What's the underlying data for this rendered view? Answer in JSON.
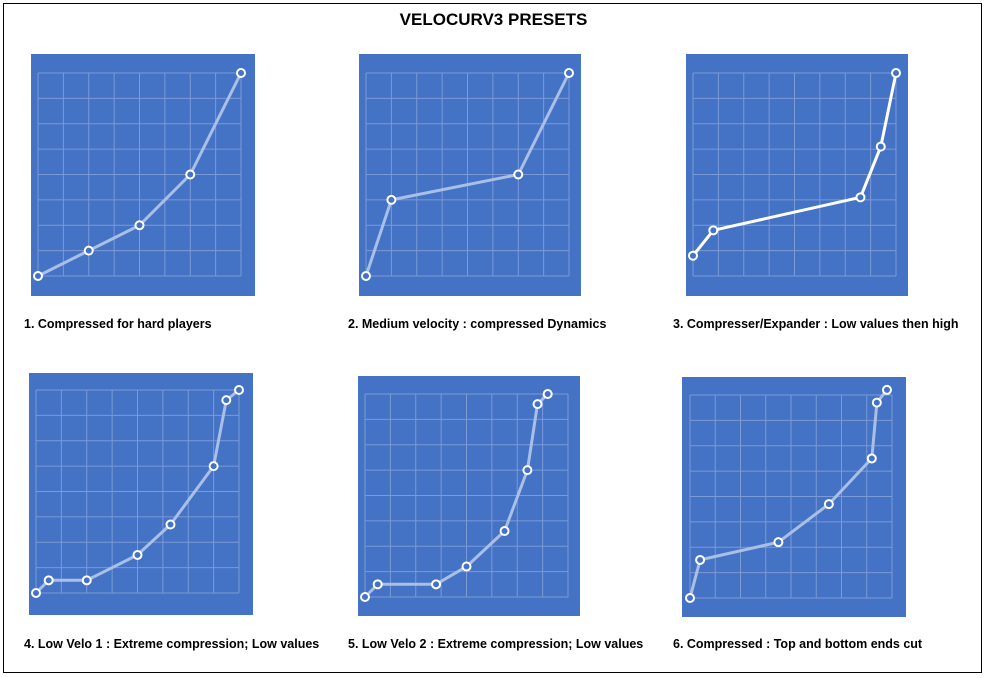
{
  "title": "VELOCURV3 PRESETS",
  "colors": {
    "panel": "#4472c4",
    "grid": "#7b9ad6",
    "curve": "#a9bfe6",
    "curve_highlight": "#ffffff",
    "marker_fill": "#4472c4",
    "marker_stroke": "#ffffff"
  },
  "chart_data": [
    {
      "type": "line",
      "title": "1. Compressed for hard players",
      "xlim": [
        0,
        8
      ],
      "ylim": [
        0,
        8
      ],
      "grid": true,
      "series": [
        {
          "x": [
            0,
            2,
            4,
            6,
            8
          ],
          "y": [
            0,
            1,
            2,
            4,
            8
          ]
        }
      ]
    },
    {
      "type": "line",
      "title": "2. Medium velocity : compressed Dynamics",
      "xlim": [
        0,
        8
      ],
      "ylim": [
        0,
        8
      ],
      "grid": true,
      "series": [
        {
          "x": [
            0,
            1,
            6,
            8
          ],
          "y": [
            0,
            3,
            4,
            8
          ]
        }
      ]
    },
    {
      "type": "line",
      "title": "3. Compresser/Expander : Low values then high",
      "xlim": [
        0,
        8
      ],
      "ylim": [
        0,
        8
      ],
      "grid": true,
      "highlight": true,
      "series": [
        {
          "x": [
            0,
            0.8,
            6.6,
            7.4,
            8
          ],
          "y": [
            0.8,
            1.8,
            3.1,
            5.1,
            8
          ]
        }
      ]
    },
    {
      "type": "line",
      "title": "4. Low Velo 1 : Extreme compression; Low values",
      "xlim": [
        0,
        8
      ],
      "ylim": [
        0,
        8
      ],
      "grid": true,
      "series": [
        {
          "x": [
            0,
            0.5,
            2,
            4,
            5.3,
            7,
            7.5,
            8
          ],
          "y": [
            0,
            0.5,
            0.5,
            1.5,
            2.7,
            5,
            7.6,
            8
          ]
        }
      ]
    },
    {
      "type": "line",
      "title": "5. Low Velo 2 : Extreme compression; Low values",
      "xlim": [
        0,
        8
      ],
      "ylim": [
        0,
        8
      ],
      "grid": true,
      "series": [
        {
          "x": [
            0,
            0.5,
            2.8,
            4,
            5.5,
            6.4,
            6.8,
            7.2
          ],
          "y": [
            0,
            0.5,
            0.5,
            1.2,
            2.6,
            5,
            7.6,
            8
          ]
        }
      ]
    },
    {
      "type": "line",
      "title": "6. Compressed : Top and bottom ends cut",
      "xlim": [
        0,
        8
      ],
      "ylim": [
        0,
        8
      ],
      "grid": true,
      "series": [
        {
          "x": [
            0,
            0.4,
            3.5,
            5.5,
            7.2,
            7.4,
            7.8
          ],
          "y": [
            0,
            1.5,
            2.2,
            3.7,
            5.5,
            7.7,
            8.2
          ]
        }
      ]
    }
  ]
}
